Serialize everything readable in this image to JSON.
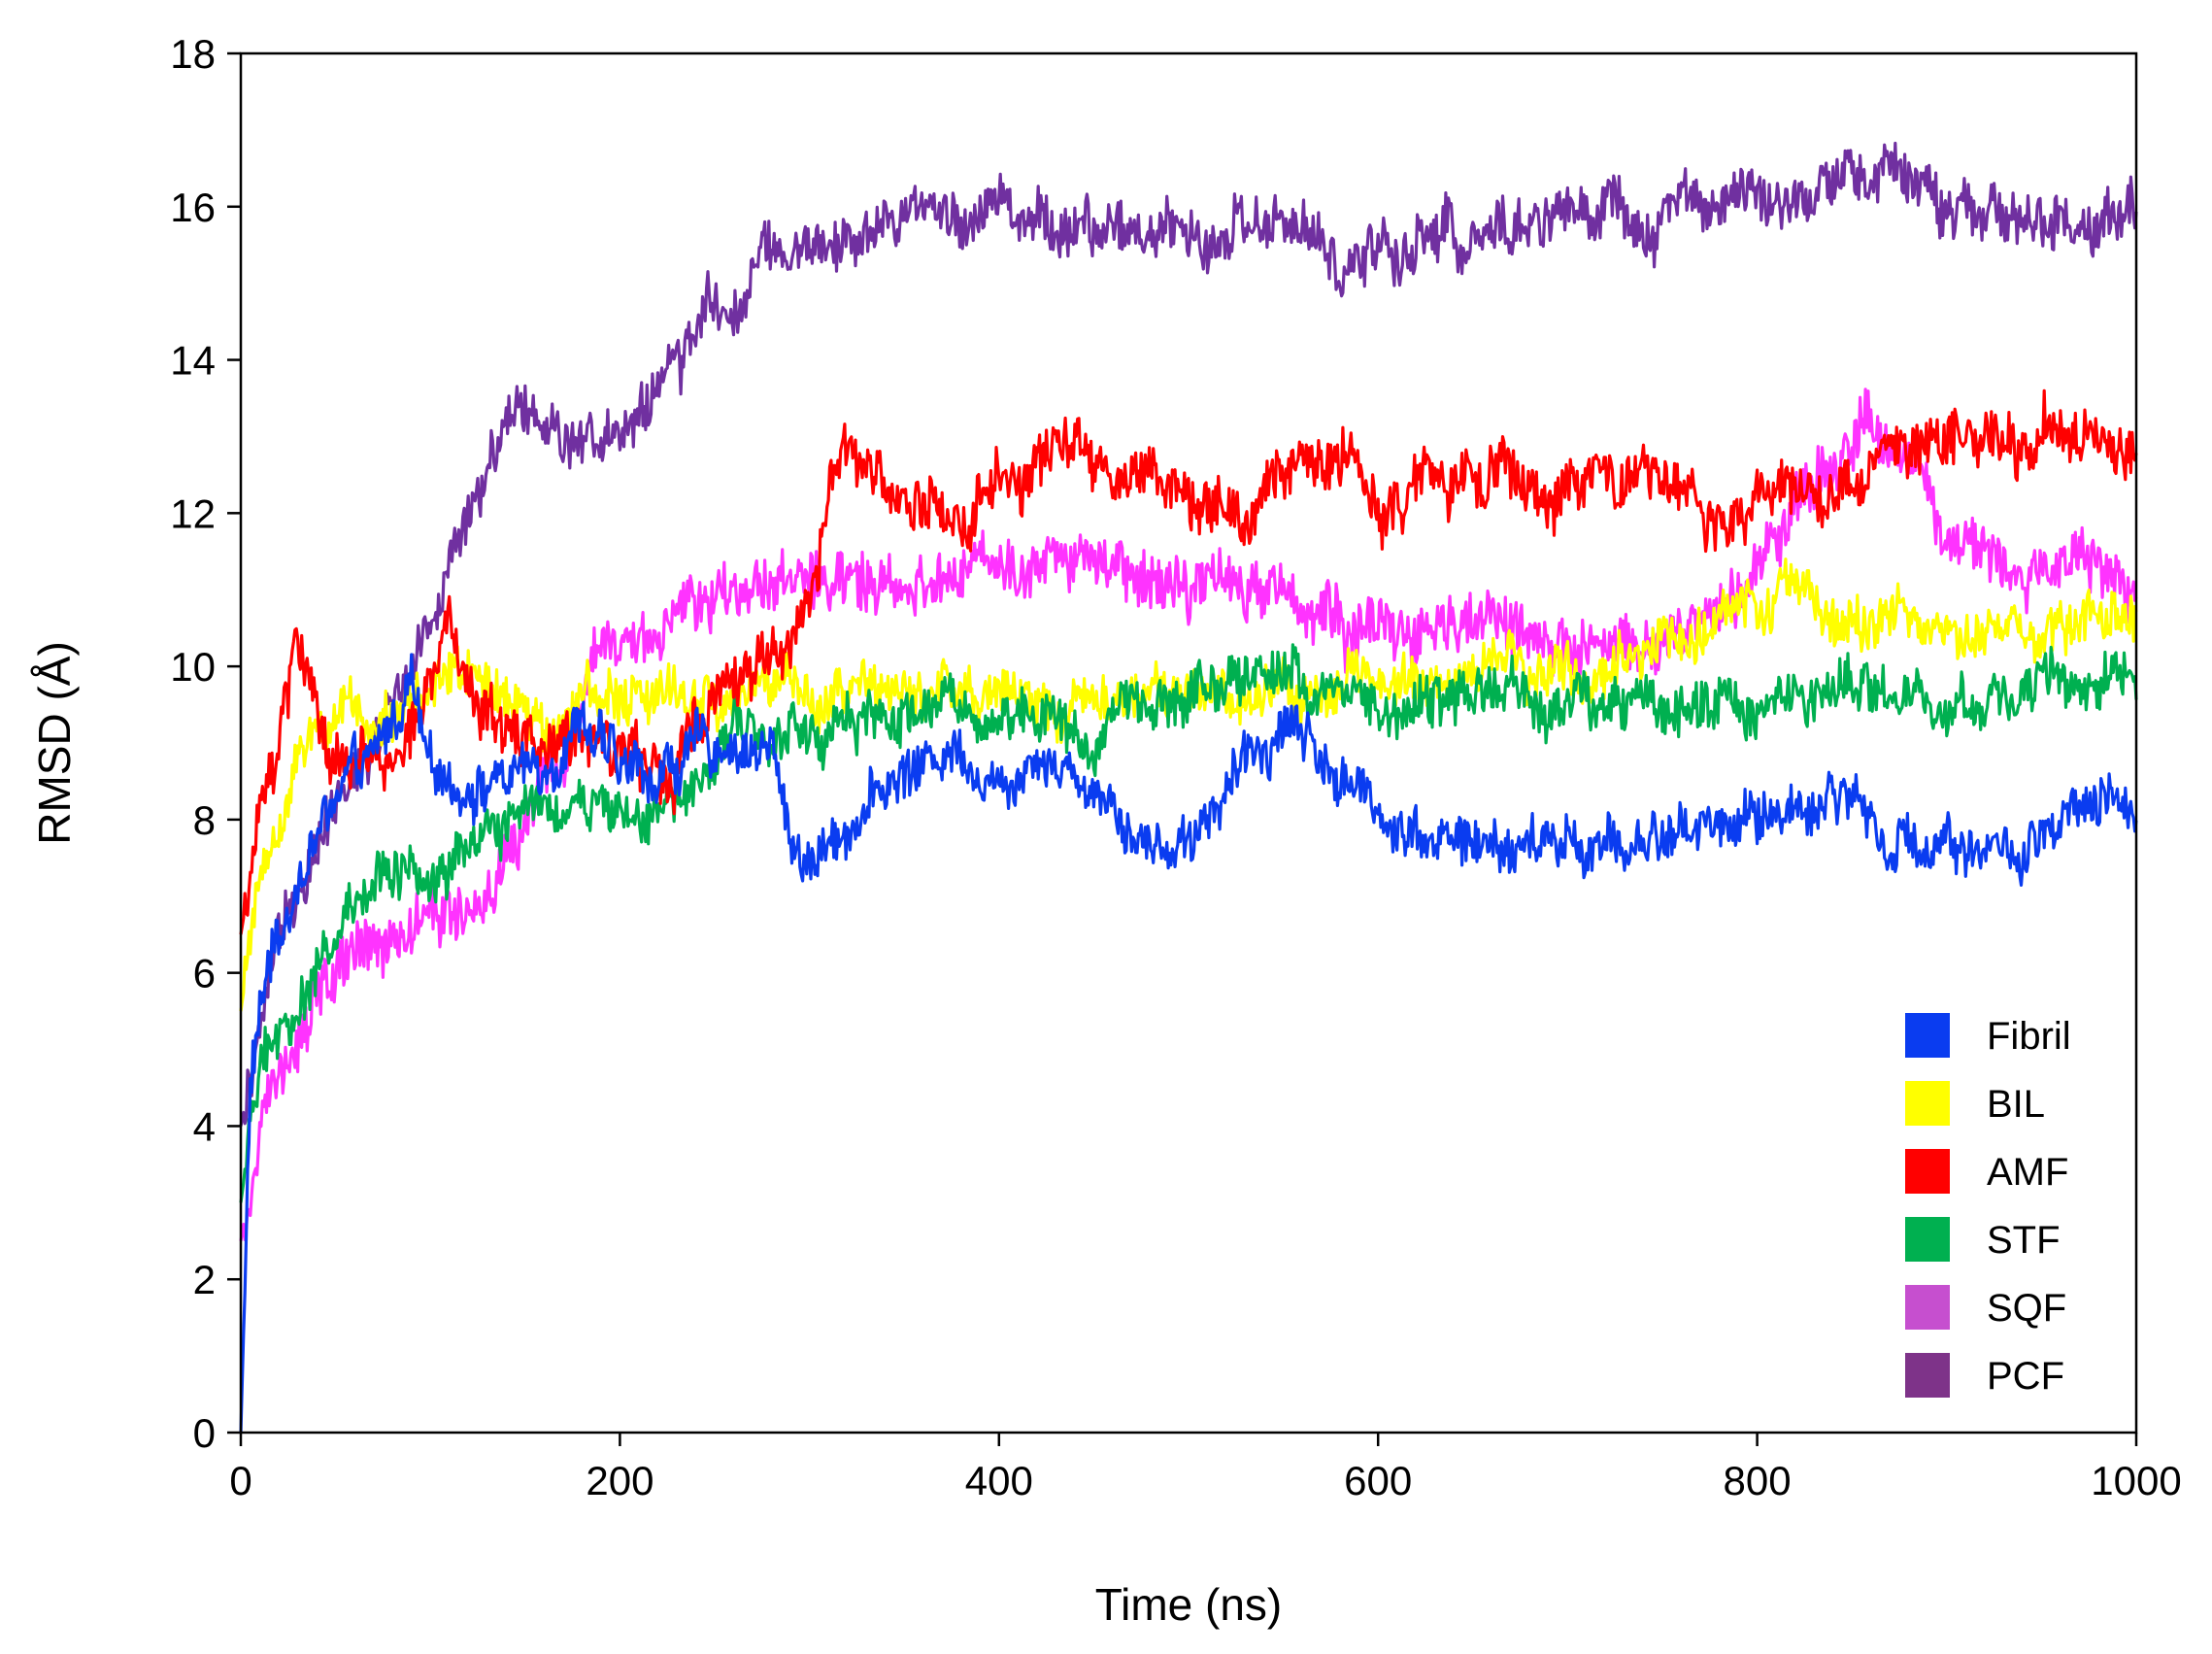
{
  "chart_data": {
    "type": "line",
    "title": "",
    "xlabel": "Time (ns)",
    "ylabel": "RMSD (Å)",
    "xlim": [
      0,
      1000
    ],
    "ylim": [
      0,
      18
    ],
    "xticks": [
      0,
      200,
      400,
      600,
      800,
      1000
    ],
    "yticks": [
      0,
      2,
      4,
      6,
      8,
      10,
      12,
      14,
      16,
      18
    ],
    "grid": false,
    "legend_position": "bottom-right",
    "series": [
      {
        "name": "Fibril",
        "color": "#0a3cf0",
        "noise": 0.35,
        "points": [
          [
            0,
            0
          ],
          [
            5,
            4.5
          ],
          [
            15,
            6.2
          ],
          [
            30,
            7.2
          ],
          [
            50,
            8.3
          ],
          [
            70,
            8.7
          ],
          [
            90,
            9.8
          ],
          [
            100,
            8.5
          ],
          [
            130,
            8.5
          ],
          [
            160,
            8.7
          ],
          [
            180,
            9.4
          ],
          [
            200,
            8.6
          ],
          [
            220,
            8.6
          ],
          [
            240,
            8.9
          ],
          [
            260,
            9.0
          ],
          [
            280,
            8.9
          ],
          [
            290,
            7.8
          ],
          [
            300,
            7.4
          ],
          [
            320,
            8.0
          ],
          [
            350,
            8.6
          ],
          [
            380,
            9.0
          ],
          [
            400,
            8.4
          ],
          [
            420,
            9.0
          ],
          [
            440,
            8.6
          ],
          [
            460,
            8.3
          ],
          [
            480,
            7.6
          ],
          [
            500,
            7.8
          ],
          [
            520,
            8.4
          ],
          [
            540,
            9.0
          ],
          [
            555,
            9.4
          ],
          [
            570,
            8.8
          ],
          [
            600,
            8.1
          ],
          [
            630,
            7.8
          ],
          [
            660,
            7.6
          ],
          [
            700,
            7.7
          ],
          [
            730,
            7.6
          ],
          [
            760,
            7.9
          ],
          [
            800,
            8.0
          ],
          [
            850,
            8.4
          ],
          [
            870,
            7.6
          ],
          [
            900,
            7.8
          ],
          [
            940,
            7.5
          ],
          [
            970,
            8.0
          ],
          [
            1000,
            8.2
          ]
        ]
      },
      {
        "name": "BIL",
        "color": "#ffff00",
        "noise": 0.35,
        "points": [
          [
            0,
            5.5
          ],
          [
            10,
            7.2
          ],
          [
            30,
            8.8
          ],
          [
            60,
            9.2
          ],
          [
            100,
            9.6
          ],
          [
            130,
            9.8
          ],
          [
            160,
            9.2
          ],
          [
            200,
            9.6
          ],
          [
            240,
            9.5
          ],
          [
            280,
            9.6
          ],
          [
            320,
            9.8
          ],
          [
            360,
            9.6
          ],
          [
            400,
            9.5
          ],
          [
            440,
            9.5
          ],
          [
            480,
            9.6
          ],
          [
            520,
            9.5
          ],
          [
            560,
            9.7
          ],
          [
            600,
            9.8
          ],
          [
            650,
            9.9
          ],
          [
            700,
            9.9
          ],
          [
            750,
            10.2
          ],
          [
            780,
            10.8
          ],
          [
            820,
            10.9
          ],
          [
            860,
            10.4
          ],
          [
            900,
            10.5
          ],
          [
            950,
            10.6
          ],
          [
            1000,
            10.6
          ]
        ]
      },
      {
        "name": "AMF",
        "color": "#ff0000",
        "noise": 0.4,
        "points": [
          [
            0,
            6.5
          ],
          [
            10,
            8.0
          ],
          [
            20,
            9.0
          ],
          [
            30,
            10.2
          ],
          [
            50,
            8.6
          ],
          [
            80,
            8.6
          ],
          [
            100,
            9.8
          ],
          [
            110,
            10.6
          ],
          [
            130,
            9.3
          ],
          [
            160,
            9.1
          ],
          [
            190,
            9.3
          ],
          [
            220,
            8.5
          ],
          [
            250,
            9.7
          ],
          [
            280,
            10.3
          ],
          [
            300,
            10.6
          ],
          [
            315,
            12.5
          ],
          [
            330,
            12.5
          ],
          [
            350,
            12.2
          ],
          [
            380,
            11.8
          ],
          [
            400,
            12.5
          ],
          [
            440,
            12.6
          ],
          [
            480,
            12.5
          ],
          [
            500,
            12.1
          ],
          [
            540,
            12.4
          ],
          [
            580,
            12.8
          ],
          [
            600,
            12.2
          ],
          [
            630,
            12.4
          ],
          [
            660,
            12.3
          ],
          [
            690,
            12.0
          ],
          [
            720,
            12.7
          ],
          [
            760,
            12.3
          ],
          [
            800,
            12.2
          ],
          [
            840,
            12.4
          ],
          [
            880,
            12.8
          ],
          [
            920,
            12.9
          ],
          [
            960,
            13.0
          ],
          [
            1000,
            12.6
          ]
        ]
      },
      {
        "name": "STF",
        "color": "#00b050",
        "noise": 0.35,
        "points": [
          [
            0,
            3.0
          ],
          [
            10,
            4.8
          ],
          [
            30,
            5.6
          ],
          [
            50,
            6.4
          ],
          [
            70,
            7.4
          ],
          [
            100,
            7.3
          ],
          [
            130,
            7.8
          ],
          [
            160,
            8.1
          ],
          [
            200,
            8.2
          ],
          [
            230,
            8.3
          ],
          [
            260,
            9.2
          ],
          [
            300,
            9.1
          ],
          [
            340,
            9.3
          ],
          [
            380,
            9.4
          ],
          [
            420,
            9.3
          ],
          [
            450,
            8.9
          ],
          [
            470,
            9.6
          ],
          [
            500,
            9.7
          ],
          [
            540,
            9.9
          ],
          [
            580,
            9.7
          ],
          [
            620,
            9.5
          ],
          [
            660,
            9.7
          ],
          [
            700,
            9.5
          ],
          [
            740,
            9.6
          ],
          [
            780,
            9.5
          ],
          [
            820,
            9.6
          ],
          [
            860,
            9.7
          ],
          [
            900,
            9.5
          ],
          [
            940,
            9.6
          ],
          [
            1000,
            10.0
          ]
        ]
      },
      {
        "name": "SQF",
        "color": "#ff33ff",
        "noise": 0.4,
        "points": [
          [
            0,
            2.5
          ],
          [
            15,
            4.8
          ],
          [
            40,
            5.8
          ],
          [
            70,
            6.2
          ],
          [
            100,
            6.7
          ],
          [
            130,
            7.0
          ],
          [
            160,
            8.2
          ],
          [
            190,
            10.4
          ],
          [
            220,
            10.6
          ],
          [
            250,
            10.8
          ],
          [
            280,
            11.2
          ],
          [
            320,
            11.4
          ],
          [
            360,
            11.2
          ],
          [
            400,
            11.2
          ],
          [
            440,
            11.3
          ],
          [
            480,
            11.1
          ],
          [
            520,
            11.1
          ],
          [
            560,
            10.8
          ],
          [
            580,
            10.3
          ],
          [
            620,
            10.6
          ],
          [
            660,
            10.5
          ],
          [
            700,
            10.3
          ],
          [
            740,
            10.2
          ],
          [
            780,
            10.6
          ],
          [
            800,
            11.2
          ],
          [
            820,
            12.2
          ],
          [
            860,
            13.0
          ],
          [
            880,
            12.6
          ],
          [
            900,
            11.6
          ],
          [
            940,
            11.3
          ],
          [
            970,
            11.4
          ],
          [
            1000,
            11.0
          ]
        ]
      },
      {
        "name": "PCF",
        "color": "#7030a0",
        "noise": 0.38,
        "points": [
          [
            0,
            4.0
          ],
          [
            20,
            6.5
          ],
          [
            50,
            8.2
          ],
          [
            80,
            9.4
          ],
          [
            100,
            10.5
          ],
          [
            120,
            12.0
          ],
          [
            140,
            13.5
          ],
          [
            160,
            13.2
          ],
          [
            180,
            13.0
          ],
          [
            200,
            13.0
          ],
          [
            220,
            13.8
          ],
          [
            240,
            14.2
          ],
          [
            260,
            15.0
          ],
          [
            280,
            15.5
          ],
          [
            300,
            15.6
          ],
          [
            330,
            15.5
          ],
          [
            360,
            15.8
          ],
          [
            400,
            15.9
          ],
          [
            440,
            15.8
          ],
          [
            480,
            15.7
          ],
          [
            520,
            15.7
          ],
          [
            560,
            15.8
          ],
          [
            575,
            15.4
          ],
          [
            580,
            14.8
          ],
          [
            590,
            15.6
          ],
          [
            620,
            15.6
          ],
          [
            660,
            15.7
          ],
          [
            700,
            15.8
          ],
          [
            740,
            15.8
          ],
          [
            770,
            16.0
          ],
          [
            800,
            15.9
          ],
          [
            840,
            16.2
          ],
          [
            870,
            16.3
          ],
          [
            900,
            16.0
          ],
          [
            940,
            15.9
          ],
          [
            1000,
            15.9
          ]
        ]
      }
    ]
  }
}
